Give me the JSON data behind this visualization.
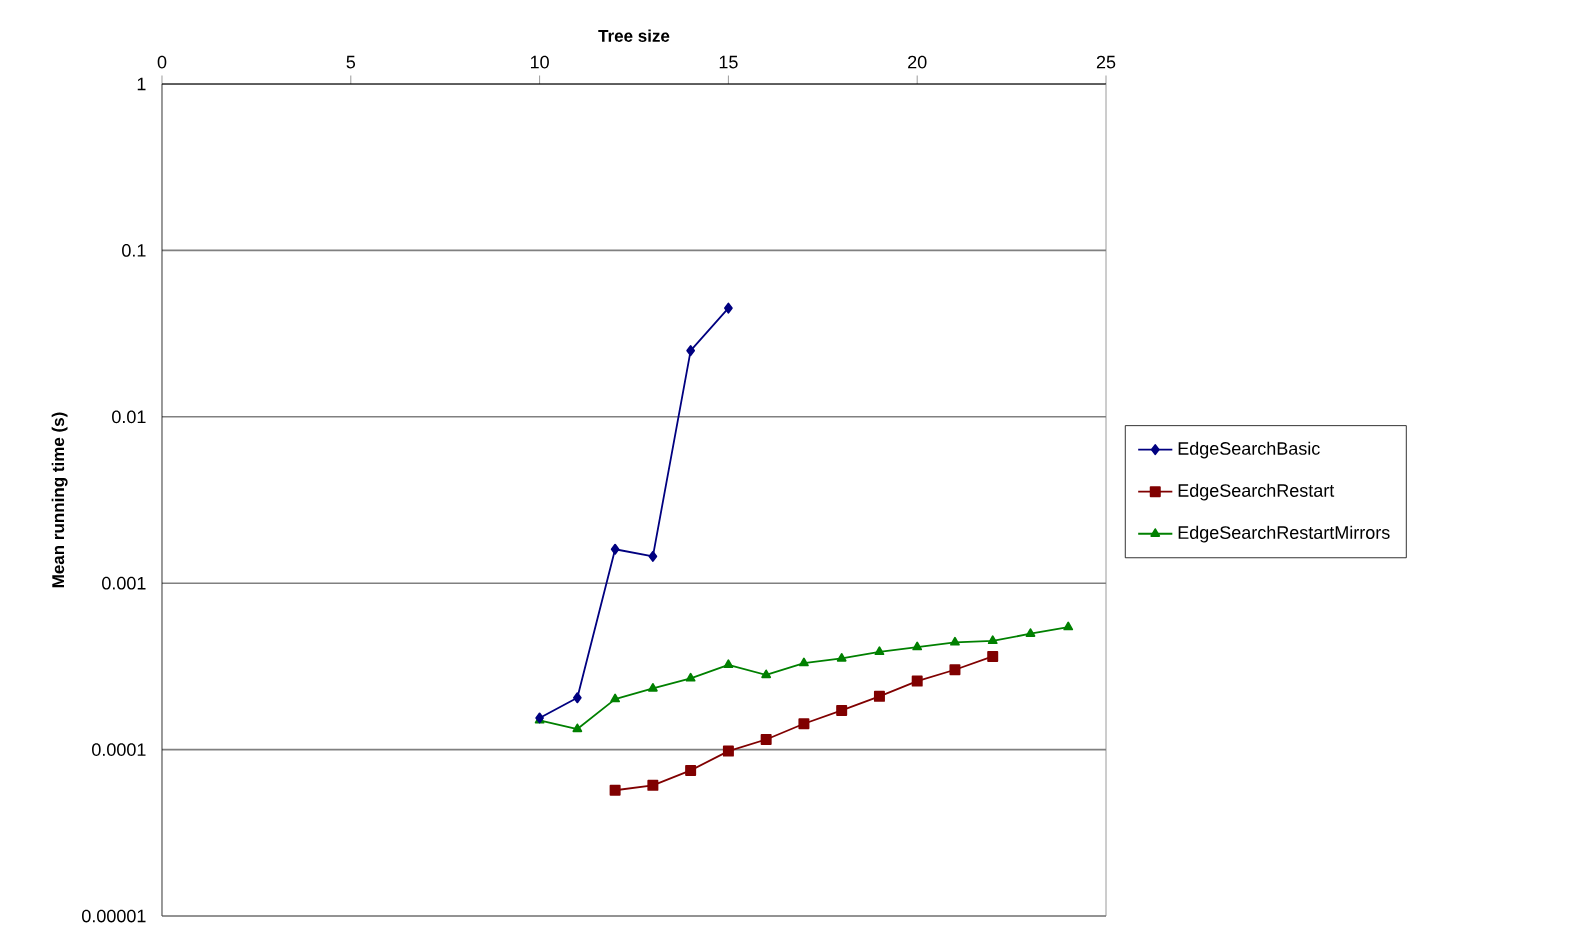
{
  "chart_data": {
    "type": "line",
    "xlabel": "Tree size",
    "ylabel": "Mean running time (s)",
    "log": "y",
    "grid": "y",
    "legend": "right",
    "xlim": [
      0,
      25
    ],
    "xticks": [
      0,
      5,
      10,
      15,
      20,
      25
    ],
    "ylim": [
      1e-05,
      1
    ],
    "yticks": [
      {
        "value": 1e-05,
        "label": "0.00001"
      },
      {
        "value": 0.0001,
        "label": "0.0001"
      },
      {
        "value": 0.001,
        "label": "0.001"
      },
      {
        "value": 0.01,
        "label": "0.01"
      },
      {
        "value": 0.1,
        "label": "0.1"
      },
      {
        "value": 1,
        "label": "1"
      }
    ],
    "series": [
      {
        "name": "EdgeSearchBasic",
        "color": "#000080",
        "marker": "diamond",
        "x": [
          10,
          11,
          12,
          13,
          14,
          15
        ],
        "values": [
          0.000155,
          0.000205,
          0.0016,
          0.00145,
          0.025,
          0.045
        ]
      },
      {
        "name": "EdgeSearchRestart",
        "color": "#800000",
        "marker": "square",
        "x": [
          12,
          13,
          14,
          15,
          16,
          17,
          18,
          19,
          20,
          21,
          22
        ],
        "values": [
          5.7e-05,
          6.1e-05,
          7.5e-05,
          9.8e-05,
          0.000115,
          0.000143,
          0.000172,
          0.000209,
          0.000258,
          0.000302,
          0.000363
        ]
      },
      {
        "name": "EdgeSearchRestartMirrors",
        "color": "#008000",
        "marker": "triangle",
        "x": [
          10,
          11,
          12,
          13,
          14,
          15,
          16,
          17,
          18,
          19,
          20,
          21,
          22,
          23,
          24
        ],
        "values": [
          0.00015,
          0.000133,
          0.000201,
          0.000233,
          0.000268,
          0.000323,
          0.000281,
          0.000331,
          0.000353,
          0.000387,
          0.000413,
          0.000441,
          0.00045,
          0.000497,
          0.000545
        ]
      }
    ]
  }
}
